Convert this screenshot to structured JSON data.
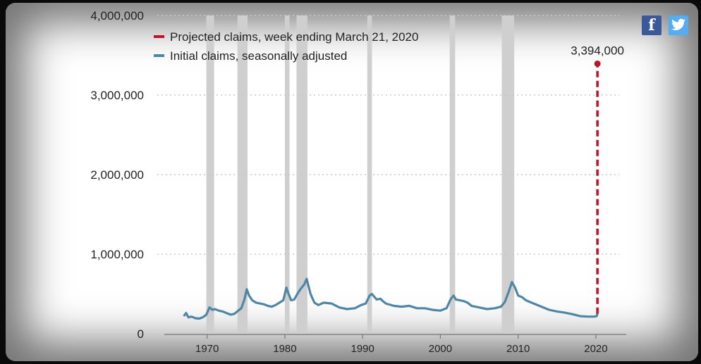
{
  "social": {
    "facebook_glyph": "f",
    "facebook_icon": "facebook-icon",
    "twitter_icon": "twitter-icon"
  },
  "colors": {
    "recession": "#cfcfcf",
    "claims": "#4f86a6",
    "projected": "#b5172b",
    "grid": "#c8c8c8",
    "text": "#222222"
  },
  "chart_data": {
    "type": "line",
    "title": "",
    "xlabel": "",
    "ylabel": "",
    "xlim": [
      1962.5,
      2023
    ],
    "ylim": [
      0,
      4000000
    ],
    "y_ticks": [
      0,
      1000000,
      2000000,
      3000000,
      4000000
    ],
    "y_tick_labels": [
      "0",
      "1,000,000",
      "2,000,000",
      "3,000,000",
      "4,000,000"
    ],
    "x_ticks": [
      1970,
      1980,
      1990,
      2000,
      2010,
      2020
    ],
    "x_tick_labels": [
      "1970",
      "1980",
      "1990",
      "2000",
      "2010",
      "2020"
    ],
    "grid": true,
    "legend_position": "top-left",
    "legend": [
      {
        "label": "Projected claims, week ending March 21, 2020",
        "style": "dashed",
        "color": "#b5172b"
      },
      {
        "label": "Initial claims, seasonally adjusted",
        "style": "solid",
        "color": "#4f86a6"
      }
    ],
    "recessions": [
      [
        1969.9,
        1970.9
      ],
      [
        1973.9,
        1975.2
      ],
      [
        1980.0,
        1980.6
      ],
      [
        1981.5,
        1982.9
      ],
      [
        1990.6,
        1991.2
      ],
      [
        2001.2,
        2001.9
      ],
      [
        2007.9,
        2009.5
      ]
    ],
    "series": [
      {
        "name": "Initial claims, seasonally adjusted",
        "style": "solid",
        "x": [
          1967.0,
          1967.3,
          1967.6,
          1968.0,
          1968.5,
          1969.0,
          1969.5,
          1969.9,
          1970.3,
          1970.7,
          1971.0,
          1971.5,
          1972.0,
          1972.5,
          1973.0,
          1973.5,
          1974.0,
          1974.4,
          1974.8,
          1975.1,
          1975.4,
          1975.8,
          1976.3,
          1976.8,
          1977.3,
          1977.8,
          1978.3,
          1978.8,
          1979.3,
          1979.8,
          1980.2,
          1980.4,
          1980.8,
          1981.2,
          1981.6,
          1982.0,
          1982.5,
          1982.8,
          1983.3,
          1983.8,
          1984.3,
          1985.0,
          1986.0,
          1987.0,
          1988.0,
          1989.0,
          1989.8,
          1990.4,
          1990.9,
          1991.2,
          1991.8,
          1992.3,
          1992.6,
          1993.0,
          1994.0,
          1995.0,
          1996.0,
          1997.0,
          1998.0,
          1999.0,
          2000.0,
          2000.8,
          2001.3,
          2001.7,
          2002.0,
          2002.5,
          2003.0,
          2003.5,
          2004.0,
          2005.0,
          2006.0,
          2007.0,
          2007.8,
          2008.3,
          2008.8,
          2009.2,
          2009.6,
          2010.0,
          2010.5,
          2011.0,
          2012.0,
          2013.0,
          2014.0,
          2015.0,
          2016.0,
          2017.0,
          2018.0,
          2019.0,
          2019.8,
          2020.1,
          2020.2
        ],
        "y": [
          220000,
          260000,
          205000,
          215000,
          195000,
          190000,
          210000,
          240000,
          330000,
          300000,
          310000,
          290000,
          280000,
          260000,
          240000,
          250000,
          290000,
          320000,
          430000,
          560000,
          480000,
          420000,
          390000,
          380000,
          370000,
          350000,
          340000,
          360000,
          390000,
          420000,
          580000,
          520000,
          420000,
          430000,
          500000,
          560000,
          620000,
          690000,
          500000,
          390000,
          360000,
          390000,
          380000,
          330000,
          310000,
          320000,
          360000,
          380000,
          480000,
          500000,
          430000,
          440000,
          410000,
          380000,
          350000,
          340000,
          350000,
          320000,
          320000,
          300000,
          290000,
          320000,
          430000,
          480000,
          430000,
          420000,
          410000,
          390000,
          350000,
          330000,
          310000,
          320000,
          340000,
          400000,
          530000,
          650000,
          580000,
          480000,
          460000,
          420000,
          380000,
          340000,
          300000,
          280000,
          265000,
          245000,
          220000,
          215000,
          215000,
          220000,
          250000
        ]
      },
      {
        "name": "Projected claims, week ending March 21, 2020",
        "style": "dashed",
        "x": [
          2020.2,
          2020.2
        ],
        "y": [
          250000,
          3394000
        ],
        "annotation": "3,394,000"
      }
    ]
  }
}
